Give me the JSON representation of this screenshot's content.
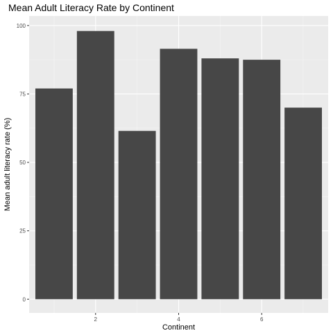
{
  "chart_data": {
    "type": "bar",
    "title": "Mean Adult Literacy Rate by Continent",
    "xlabel": "Continent",
    "ylabel": "Mean adult literacy rate (%)",
    "x": [
      1,
      2,
      3,
      4,
      5,
      6,
      7
    ],
    "values": [
      77,
      98,
      61.5,
      91.5,
      88,
      87.5,
      70
    ],
    "xlim": [
      0.4,
      7.6
    ],
    "ylim": [
      -5,
      103.5
    ],
    "x_ticks": [
      2,
      4,
      6
    ],
    "y_ticks": [
      0,
      25,
      50,
      75,
      100
    ],
    "grid": true,
    "colors": {
      "bar": "#474747",
      "panel": "#ebebeb",
      "grid_major": "#ffffff",
      "grid_minor": "#f5f5f5",
      "tick": "#333333"
    }
  }
}
